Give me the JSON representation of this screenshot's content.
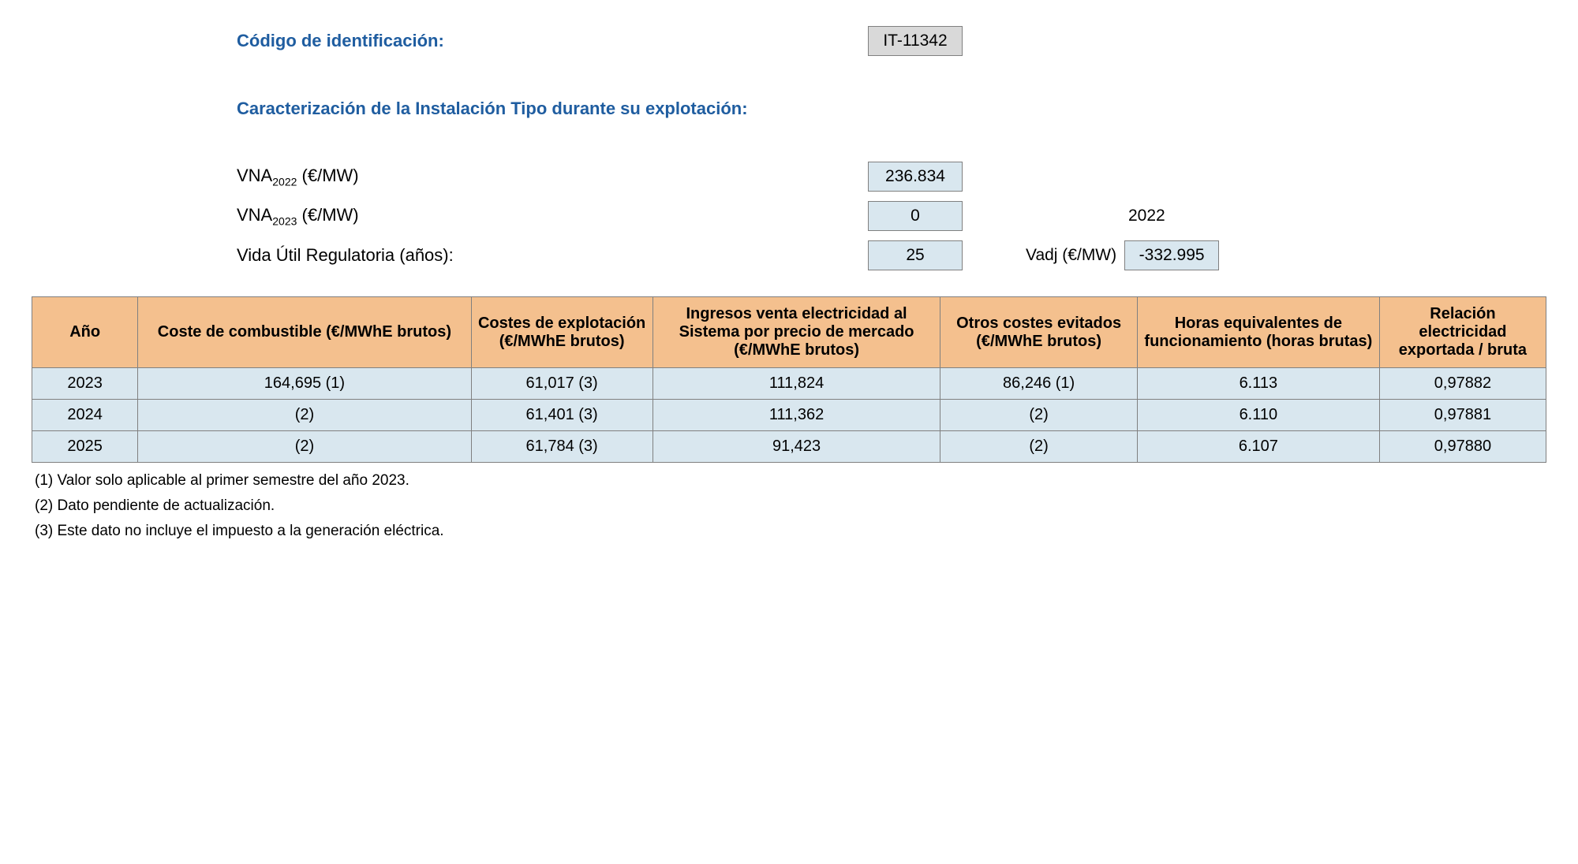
{
  "header": {
    "code_label": "Código de identificación:",
    "code_value": "IT-11342",
    "section_title": "Caracterización de la Instalación Tipo durante su explotación:",
    "vna2022_label_html": "VNA<span class=\"sub\">2022</span> (€/MW)",
    "vna2022_value": "236.834",
    "vna2023_label_html": "VNA<span class=\"sub\">2023</span> (€/MW)",
    "vna2023_value": "0",
    "vna2023_year": "2022",
    "life_label": "Vida Útil Regulatoria (años):",
    "life_value": "25",
    "vadj_label": "Vadj (€/MW)",
    "vadj_value": "-332.995"
  },
  "table": {
    "columns": [
      "Año",
      "Coste de combustible (€/MWhE brutos)",
      "Costes de explotación (€/MWhE brutos)",
      "Ingresos venta electricidad al Sistema por precio de mercado (€/MWhE brutos)",
      "Otros costes evitados (€/MWhE brutos)",
      "Horas equivalentes de funcionamiento (horas brutas)",
      "Relación electricidad exportada / bruta"
    ],
    "col_widths": [
      "7%",
      "22%",
      "12%",
      "19%",
      "13%",
      "16%",
      "11%"
    ],
    "rows": [
      [
        "2023",
        "164,695 (1)",
        "61,017 (3)",
        "111,824",
        "86,246 (1)",
        "6.113",
        "0,97882"
      ],
      [
        "2024",
        "(2)",
        "61,401 (3)",
        "111,362",
        "(2)",
        "6.110",
        "0,97881"
      ],
      [
        "2025",
        "(2)",
        "61,784 (3)",
        "91,423",
        "(2)",
        "6.107",
        "0,97880"
      ]
    ],
    "header_bg": "#f4c08e",
    "cell_bg": "#d9e7ef",
    "border_color": "#808080"
  },
  "footnotes": [
    "(1) Valor solo aplicable al primer semestre del año 2023.",
    "(2) Dato pendiente de actualización.",
    "(3) Este dato no incluye el impuesto a la generación eléctrica."
  ]
}
